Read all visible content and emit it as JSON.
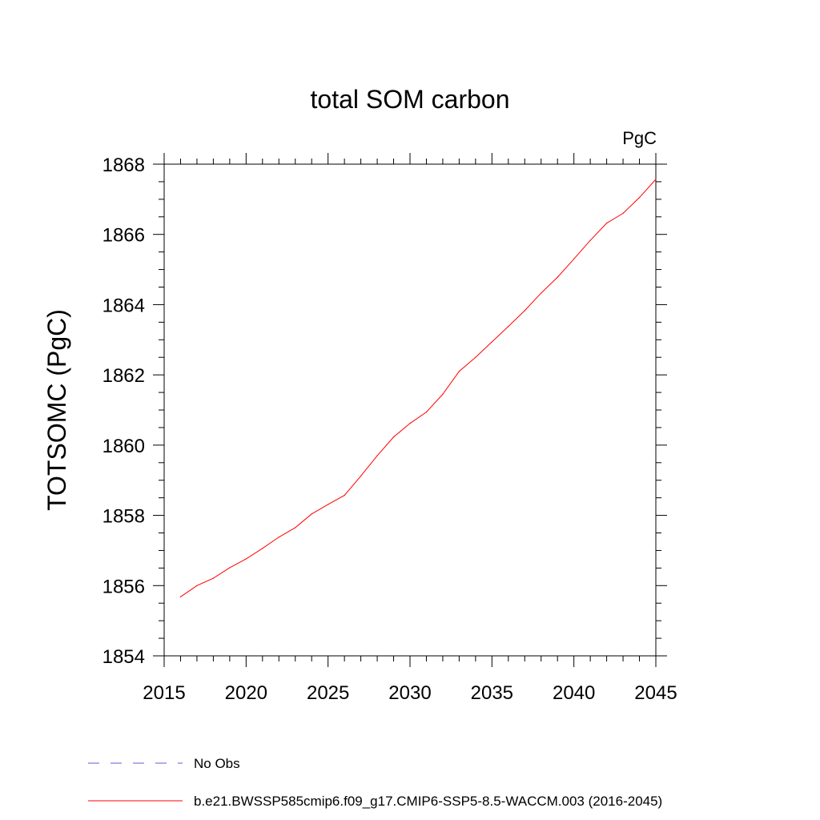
{
  "chart_data": {
    "type": "line",
    "title": "total SOM carbon",
    "units": "PgC",
    "xlabel": "",
    "ylabel": "TOTSOMC  (PgC)",
    "xlim": [
      2015,
      2045
    ],
    "ylim": [
      1854,
      1868
    ],
    "x_ticks": [
      2015,
      2020,
      2025,
      2030,
      2035,
      2040,
      2045
    ],
    "y_ticks": [
      1854,
      1856,
      1858,
      1860,
      1862,
      1864,
      1866,
      1868
    ],
    "grid": false,
    "legend_position": "bottom",
    "series": [
      {
        "name": "b.e21.BWSSP585cmip6.f09_g17.CMIP6-SSP5-8.5-WACCM.003 (2016-2045)",
        "color": "#ff0000",
        "style": "solid",
        "x": [
          2016,
          2017,
          2018,
          2019,
          2020,
          2021,
          2022,
          2023,
          2024,
          2025,
          2026,
          2027,
          2028,
          2029,
          2030,
          2031,
          2032,
          2033,
          2034,
          2035,
          2036,
          2037,
          2038,
          2039,
          2040,
          2041,
          2042,
          2043,
          2044,
          2045
        ],
        "y": [
          1855.68,
          1856.0,
          1856.21,
          1856.51,
          1856.76,
          1857.06,
          1857.38,
          1857.65,
          1858.04,
          1858.31,
          1858.57,
          1859.12,
          1859.7,
          1860.23,
          1860.62,
          1860.94,
          1861.45,
          1862.1,
          1862.5,
          1862.94,
          1863.38,
          1863.83,
          1864.33,
          1864.78,
          1865.3,
          1865.83,
          1866.32,
          1866.6,
          1867.05,
          1867.57
        ]
      }
    ],
    "legend": [
      {
        "label": "No Obs",
        "color": "#6a5acd",
        "style": "dashed"
      },
      {
        "label": "b.e21.BWSSP585cmip6.f09_g17.CMIP6-SSP5-8.5-WACCM.003 (2016-2045)",
        "color": "#ff0000",
        "style": "solid"
      }
    ]
  }
}
